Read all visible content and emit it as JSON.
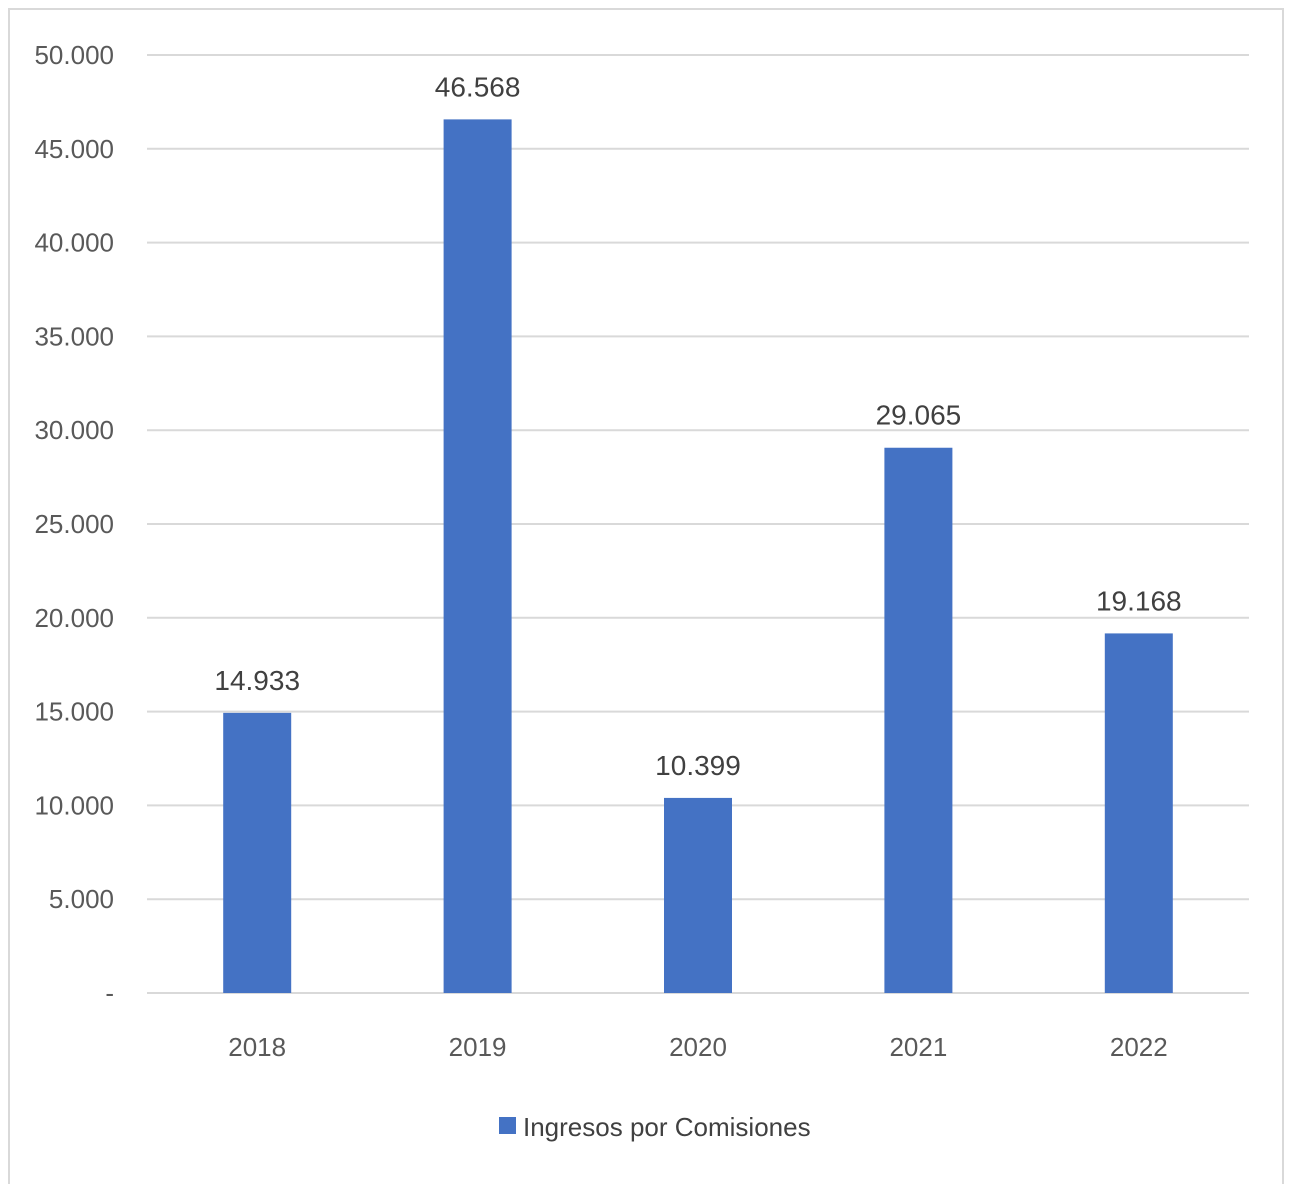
{
  "chart_data": {
    "type": "bar",
    "categories": [
      "2018",
      "2019",
      "2020",
      "2021",
      "2022"
    ],
    "series": [
      {
        "name": "Ingresos por Comisiones",
        "values": [
          14933,
          46568,
          10399,
          29065,
          19168
        ],
        "labels": [
          "14.933",
          "46.568",
          "10.399",
          "29.065",
          "19.168"
        ],
        "color": "#4472c4"
      }
    ],
    "y_ticks": [
      {
        "value": 0,
        "label": "-"
      },
      {
        "value": 5000,
        "label": "5.000"
      },
      {
        "value": 10000,
        "label": "10.000"
      },
      {
        "value": 15000,
        "label": "15.000"
      },
      {
        "value": 20000,
        "label": "20.000"
      },
      {
        "value": 25000,
        "label": "25.000"
      },
      {
        "value": 30000,
        "label": "30.000"
      },
      {
        "value": 35000,
        "label": "35.000"
      },
      {
        "value": 40000,
        "label": "40.000"
      },
      {
        "value": 45000,
        "label": "45.000"
      },
      {
        "value": 50000,
        "label": "50.000"
      }
    ],
    "ylim": [
      0,
      50000
    ],
    "grid": true,
    "legend_position": "bottom",
    "gridline_color": "#d9d9d9",
    "frame_color": "#d9d9d9"
  }
}
